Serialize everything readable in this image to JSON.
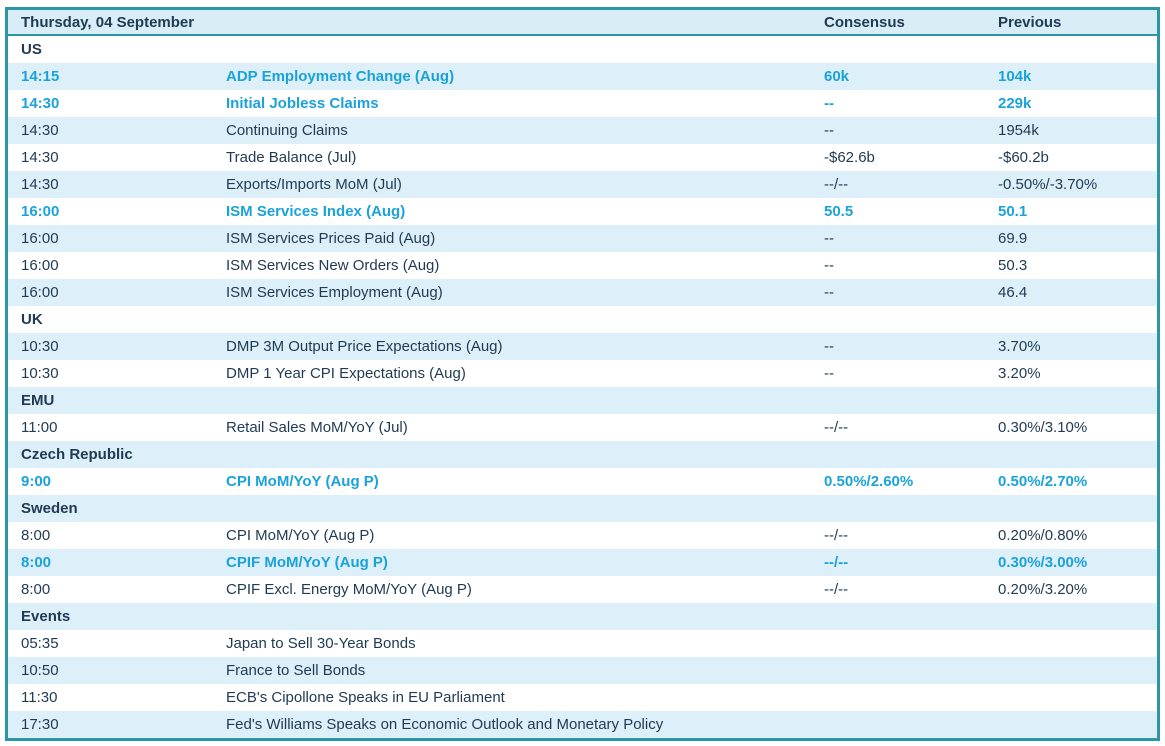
{
  "table": {
    "header": {
      "date": "Thursday, 04 September",
      "consensus": "Consensus",
      "previous": "Previous"
    },
    "colors": {
      "border_teal": "#2b96a6",
      "header_bg": "#d9edf6",
      "alt_row_bg": "#ddeff8",
      "text_dark": "#1f3a52",
      "highlight_cyan": "#1ba2da"
    },
    "rows": [
      {
        "type": "section",
        "label": "US"
      },
      {
        "type": "event",
        "time": "14:15",
        "event": "ADP Employment Change (Aug)",
        "consensus": "60k",
        "previous": "104k",
        "highlight": true
      },
      {
        "type": "event",
        "time": "14:30",
        "event": "Initial Jobless Claims",
        "consensus": "--",
        "previous": "229k",
        "highlight": true
      },
      {
        "type": "event",
        "time": "14:30",
        "event": "Continuing Claims",
        "consensus": "--",
        "previous": "1954k",
        "highlight": false
      },
      {
        "type": "event",
        "time": "14:30",
        "event": "Trade Balance (Jul)",
        "consensus": "-$62.6b",
        "previous": "-$60.2b",
        "highlight": false
      },
      {
        "type": "event",
        "time": "14:30",
        "event": "Exports/Imports MoM (Jul)",
        "consensus": "--/--",
        "previous": "-0.50%/-3.70%",
        "highlight": false
      },
      {
        "type": "event",
        "time": "16:00",
        "event": "ISM Services Index (Aug)",
        "consensus": "50.5",
        "previous": "50.1",
        "highlight": true
      },
      {
        "type": "event",
        "time": "16:00",
        "event": "ISM Services Prices Paid (Aug)",
        "consensus": "--",
        "previous": "69.9",
        "highlight": false
      },
      {
        "type": "event",
        "time": "16:00",
        "event": "ISM Services New Orders (Aug)",
        "consensus": "--",
        "previous": "50.3",
        "highlight": false
      },
      {
        "type": "event",
        "time": "16:00",
        "event": "ISM Services Employment (Aug)",
        "consensus": "--",
        "previous": "46.4",
        "highlight": false
      },
      {
        "type": "section",
        "label": "UK"
      },
      {
        "type": "event",
        "time": "10:30",
        "event": "DMP 3M Output Price Expectations (Aug)",
        "consensus": "--",
        "previous": "3.70%",
        "highlight": false
      },
      {
        "type": "event",
        "time": "10:30",
        "event": "DMP 1 Year CPI Expectations (Aug)",
        "consensus": "--",
        "previous": "3.20%",
        "highlight": false
      },
      {
        "type": "section",
        "label": "EMU"
      },
      {
        "type": "event",
        "time": "11:00",
        "event": "Retail Sales MoM/YoY (Jul)",
        "consensus": "--/--",
        "previous": "0.30%/3.10%",
        "highlight": false
      },
      {
        "type": "section",
        "label": "Czech Republic"
      },
      {
        "type": "event",
        "time": "9:00",
        "event": "CPI MoM/YoY (Aug P)",
        "consensus": "0.50%/2.60%",
        "previous": "0.50%/2.70%",
        "highlight": true
      },
      {
        "type": "section",
        "label": "Sweden"
      },
      {
        "type": "event",
        "time": "8:00",
        "event": "CPI MoM/YoY (Aug P)",
        "consensus": "--/--",
        "previous": "0.20%/0.80%",
        "highlight": false
      },
      {
        "type": "event",
        "time": "8:00",
        "event": "CPIF MoM/YoY (Aug P)",
        "consensus": "--/--",
        "previous": "0.30%/3.00%",
        "highlight": true
      },
      {
        "type": "event",
        "time": "8:00",
        "event": "CPIF Excl. Energy MoM/YoY (Aug P)",
        "consensus": "--/--",
        "previous": "0.20%/3.20%",
        "highlight": false
      },
      {
        "type": "section",
        "label": "Events"
      },
      {
        "type": "event",
        "time": "05:35",
        "event": "Japan to Sell 30-Year Bonds",
        "consensus": "",
        "previous": "",
        "highlight": false
      },
      {
        "type": "event",
        "time": "10:50",
        "event": "France to Sell Bonds",
        "consensus": "",
        "previous": "",
        "highlight": false
      },
      {
        "type": "event",
        "time": "11:30",
        "event": "ECB's Cipollone Speaks in EU Parliament",
        "consensus": "",
        "previous": "",
        "highlight": false
      },
      {
        "type": "event",
        "time": "17:30",
        "event": "Fed's Williams Speaks on Economic Outlook and Monetary Policy",
        "consensus": "",
        "previous": "",
        "highlight": false
      }
    ]
  }
}
